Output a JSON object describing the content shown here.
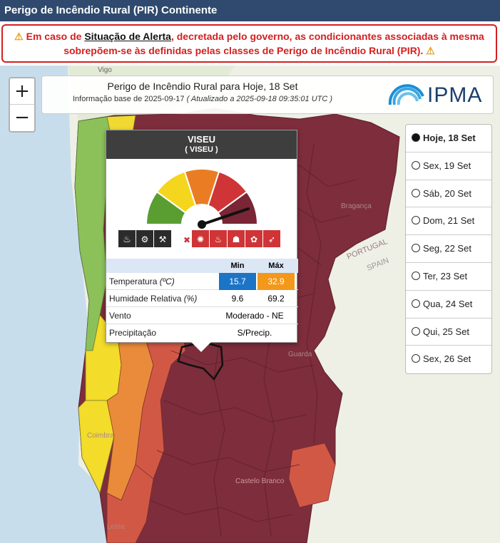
{
  "window_title": "Perigo de Incêndio Rural (PIR) Continente",
  "alert": {
    "text_before": "Em caso de ",
    "link_text": "Situação de Alerta",
    "text_after": ", decretada pelo governo, as condicionantes associadas à mesma sobrepõem-se às definidas pelas classes de Perigo de Incêndio Rural (PIR).",
    "icon": "warning-icon"
  },
  "zoom": {
    "in": "+",
    "out": "−"
  },
  "header": {
    "title": "Perigo de Incêndio Rural para Hoje, 18 Set",
    "base_info": "Informação base de 2025-09-17",
    "updated": "( Atualizado a 2025-09-18 09:35:01 UTC )",
    "logo_text": "IPMA"
  },
  "map_labels": {
    "vigo": "Vigo",
    "braganca": "Bragança",
    "portugal": "PORTUGAL",
    "spain": "SPAIN",
    "guarda": "Guarda",
    "coimbra": "Coimbra",
    "castelo_branco": "Castelo Branco",
    "leiria": "Leiria"
  },
  "days": [
    {
      "label": "Hoje, 18 Set",
      "selected": true
    },
    {
      "label": "Sex, 19 Set",
      "selected": false
    },
    {
      "label": "Sáb, 20 Set",
      "selected": false
    },
    {
      "label": "Dom, 21 Set",
      "selected": false
    },
    {
      "label": "Seg, 22 Set",
      "selected": false
    },
    {
      "label": "Ter, 23 Set",
      "selected": false
    },
    {
      "label": "Qua, 24 Set",
      "selected": false
    },
    {
      "label": "Qui, 25 Set",
      "selected": false
    },
    {
      "label": "Sex, 26 Set",
      "selected": false
    }
  ],
  "popup": {
    "district": "VISEU",
    "concelho": "( VISEU )",
    "danger_level": 5,
    "table": {
      "col_min": "Min",
      "col_max": "Máx",
      "temperature_label": "Temperatura",
      "temperature_unit": "(ºC)",
      "temp_min": "15.7",
      "temp_max": "32.9",
      "humidity_label": "Humidade Relativa",
      "humidity_unit": "(%)",
      "hum_min": "9.6",
      "hum_max": "69.2",
      "wind_label": "Vento",
      "wind_value": "Moderado - NE",
      "precip_label": "Precipitação",
      "precip_value": "S/Precip."
    }
  },
  "colors": {
    "title_bar": "#2f4a6e",
    "alert_red": "#d42020",
    "level_green": "#5a9e32",
    "level_yellow": "#f5d61e",
    "level_orange": "#ea7d24",
    "level_red": "#cf3537",
    "level_maximum": "#7a2636",
    "temp_min": "#1b74c6",
    "temp_max": "#f3981b"
  }
}
